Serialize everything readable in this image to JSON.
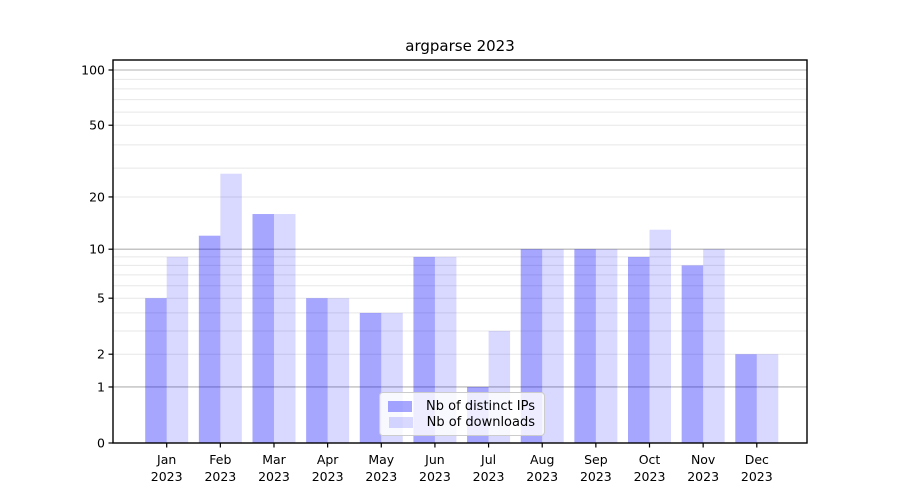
{
  "title": "argparse 2023",
  "chart_data": {
    "type": "bar",
    "title": "argparse 2023",
    "categories": [
      "Jan 2023",
      "Feb 2023",
      "Mar 2023",
      "Apr 2023",
      "May 2023",
      "Jun 2023",
      "Jul 2023",
      "Aug 2023",
      "Sep 2023",
      "Oct 2023",
      "Nov 2023",
      "Dec 2023"
    ],
    "series": [
      {
        "name": "Nb of distinct IPs",
        "values": [
          5,
          12,
          16,
          5,
          4,
          9,
          1,
          10,
          10,
          9,
          8,
          2
        ],
        "color": "rgba(0,0,255,0.35)",
        "solid_color": "#a6a6fa"
      },
      {
        "name": "Nb of downloads",
        "values": [
          9,
          27,
          16,
          5,
          4,
          9,
          3,
          10,
          10,
          13,
          10,
          2
        ],
        "color": "rgba(0,0,255,0.15)",
        "solid_color": "#d9d9fc"
      }
    ],
    "xlabel": "",
    "ylabel": "",
    "yscale": "log10(value+1)",
    "yticks": [
      0,
      1,
      2,
      5,
      10,
      20,
      50,
      100
    ],
    "ylim": [
      0,
      113
    ],
    "grid": "both",
    "grid_major_color": "#b0b0b0",
    "grid_minor_color": "#e7e7e7",
    "axis_color": "#000000",
    "tick_label_color": "#000000",
    "legend_position": "lower center"
  },
  "legend": {
    "items": [
      {
        "label": "Nb of distinct IPs"
      },
      {
        "label": "Nb of downloads"
      }
    ]
  }
}
